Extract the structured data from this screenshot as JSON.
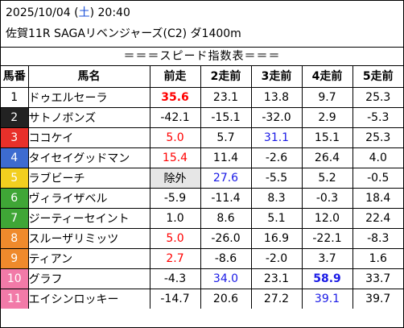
{
  "header": {
    "date_prefix": "2025/10/04 (",
    "day_of_week": "土",
    "date_suffix": ") 20:40",
    "race": "佐賀11R SAGAリベンジャーズ(C2) ダ1400m"
  },
  "banner": "＝＝＝スピード指数表＝＝＝",
  "columns": [
    "馬番",
    "馬名",
    "前走",
    "2走前",
    "3走前",
    "4走前",
    "5走前"
  ],
  "colors": {
    "red_value": "#ff0000",
    "blue_value": "#1a1ae6",
    "excluded_bg": "#e6e6e6"
  },
  "rows": [
    {
      "num": "1",
      "num_bg": "#ffffff",
      "num_fg": "#000000",
      "name": "ドゥエルセーラ",
      "values": [
        {
          "text": "35.6",
          "style": "red bold"
        },
        {
          "text": "23.1",
          "style": ""
        },
        {
          "text": "13.8",
          "style": ""
        },
        {
          "text": "9.7",
          "style": ""
        },
        {
          "text": "25.3",
          "style": ""
        }
      ]
    },
    {
      "num": "2",
      "num_bg": "#222222",
      "num_fg": "#ffffff",
      "name": "サトノボンズ",
      "values": [
        {
          "text": "-42.1",
          "style": ""
        },
        {
          "text": "-15.1",
          "style": ""
        },
        {
          "text": "-32.0",
          "style": ""
        },
        {
          "text": "2.9",
          "style": ""
        },
        {
          "text": "-5.3",
          "style": ""
        }
      ]
    },
    {
      "num": "3",
      "num_bg": "#e8302a",
      "num_fg": "#ffffff",
      "name": "ココケイ",
      "values": [
        {
          "text": "5.0",
          "style": "red"
        },
        {
          "text": "5.7",
          "style": ""
        },
        {
          "text": "31.1",
          "style": "blue"
        },
        {
          "text": "15.1",
          "style": ""
        },
        {
          "text": "25.3",
          "style": ""
        }
      ]
    },
    {
      "num": "4",
      "num_bg": "#3d6bd0",
      "num_fg": "#ffffff",
      "name": "タイセイグッドマン",
      "values": [
        {
          "text": "15.4",
          "style": "red"
        },
        {
          "text": "11.4",
          "style": ""
        },
        {
          "text": "-2.6",
          "style": ""
        },
        {
          "text": "26.4",
          "style": ""
        },
        {
          "text": "4.0",
          "style": ""
        }
      ]
    },
    {
      "num": "5",
      "num_bg": "#f2cf1f",
      "num_fg": "#ffffff",
      "name": "ラブビーチ",
      "values": [
        {
          "text": "除外",
          "style": "excl"
        },
        {
          "text": "27.6",
          "style": "blue"
        },
        {
          "text": "-5.5",
          "style": ""
        },
        {
          "text": "5.2",
          "style": ""
        },
        {
          "text": "-0.5",
          "style": ""
        }
      ]
    },
    {
      "num": "6",
      "num_bg": "#3fa636",
      "num_fg": "#ffffff",
      "name": "ヴィライザベル",
      "values": [
        {
          "text": "-5.9",
          "style": ""
        },
        {
          "text": "-11.4",
          "style": ""
        },
        {
          "text": "8.3",
          "style": ""
        },
        {
          "text": "-0.3",
          "style": ""
        },
        {
          "text": "18.4",
          "style": ""
        }
      ]
    },
    {
      "num": "7",
      "num_bg": "#3fa636",
      "num_fg": "#ffffff",
      "name": "ジーティーセイント",
      "values": [
        {
          "text": "1.0",
          "style": ""
        },
        {
          "text": "8.6",
          "style": ""
        },
        {
          "text": "5.1",
          "style": ""
        },
        {
          "text": "12.0",
          "style": ""
        },
        {
          "text": "22.4",
          "style": ""
        }
      ]
    },
    {
      "num": "8",
      "num_bg": "#ef8a2c",
      "num_fg": "#ffffff",
      "name": "スルーザリミッツ",
      "values": [
        {
          "text": "5.0",
          "style": "red"
        },
        {
          "text": "-26.0",
          "style": ""
        },
        {
          "text": "16.9",
          "style": ""
        },
        {
          "text": "-22.1",
          "style": ""
        },
        {
          "text": "-8.3",
          "style": ""
        }
      ]
    },
    {
      "num": "9",
      "num_bg": "#ef8a2c",
      "num_fg": "#ffffff",
      "name": "ティアン",
      "values": [
        {
          "text": "2.7",
          "style": "red"
        },
        {
          "text": "-8.6",
          "style": ""
        },
        {
          "text": "-2.0",
          "style": ""
        },
        {
          "text": "3.7",
          "style": ""
        },
        {
          "text": "1.6",
          "style": ""
        }
      ]
    },
    {
      "num": "10",
      "num_bg": "#f27aa8",
      "num_fg": "#ffffff",
      "name": "グラフ",
      "values": [
        {
          "text": "-4.3",
          "style": ""
        },
        {
          "text": "34.0",
          "style": "blue"
        },
        {
          "text": "23.1",
          "style": ""
        },
        {
          "text": "58.9",
          "style": "blue bold"
        },
        {
          "text": "33.7",
          "style": ""
        }
      ]
    },
    {
      "num": "11",
      "num_bg": "#f27aa8",
      "num_fg": "#ffffff",
      "name": "エイシンロッキー",
      "values": [
        {
          "text": "-14.7",
          "style": ""
        },
        {
          "text": "20.6",
          "style": ""
        },
        {
          "text": "27.2",
          "style": ""
        },
        {
          "text": "39.1",
          "style": "blue"
        },
        {
          "text": "39.7",
          "style": ""
        }
      ]
    }
  ]
}
